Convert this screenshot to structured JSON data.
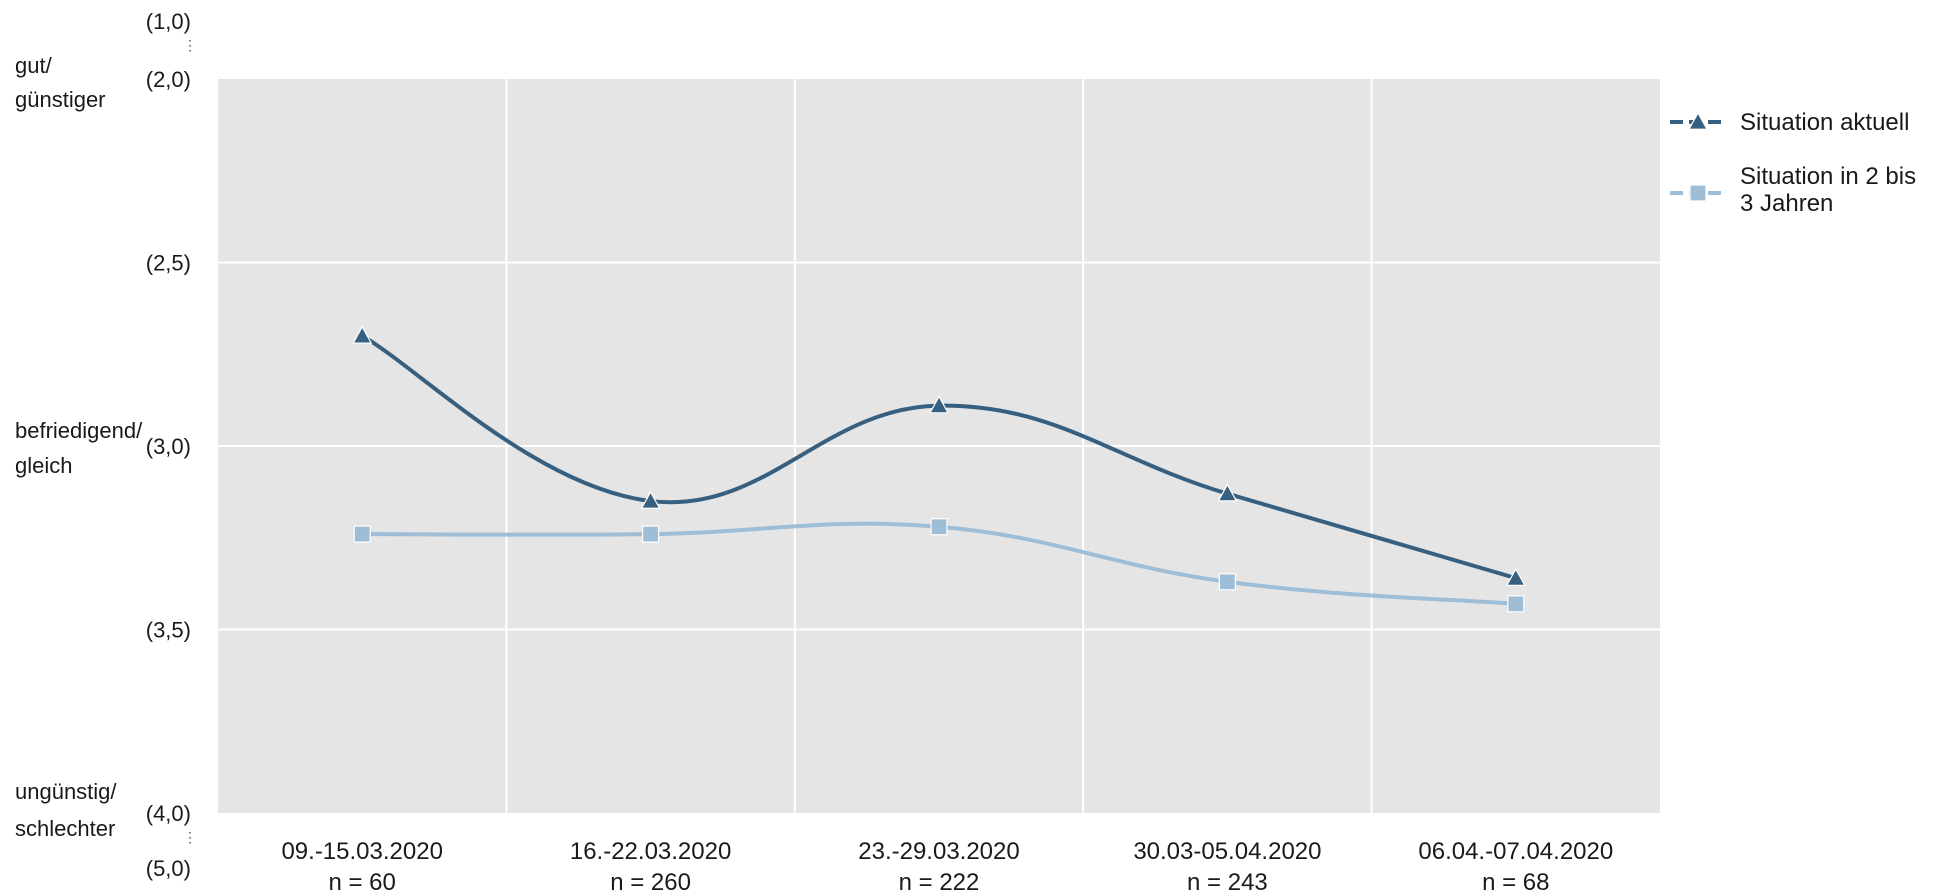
{
  "chart_data": {
    "type": "line",
    "categories": [
      "09.-15.03.2020",
      "16.-22.03.2020",
      "23.-29.03.2020",
      "30.03-05.04.2020",
      "06.04.-07.04.2020"
    ],
    "category_sublabels": [
      "n = 60",
      "n = 260",
      "n = 222",
      "n = 243",
      "n = 68"
    ],
    "series": [
      {
        "name": "Situation aktuell",
        "values": [
          2.7,
          3.15,
          2.89,
          3.13,
          3.36
        ],
        "color": "#365f80",
        "marker": "triangle"
      },
      {
        "name": "Situation in 2 bis 3 Jahren",
        "values": [
          3.24,
          3.24,
          3.22,
          3.37,
          3.43
        ],
        "color": "#9ebdd6",
        "marker": "square"
      }
    ],
    "y_scale": {
      "ylim": [
        2.0,
        4.0
      ],
      "reversed": true,
      "broken_axis": true,
      "extreme_top_label": "(1,0)",
      "extreme_bottom_label": "(5,0)"
    },
    "y_ticks": [
      {
        "value": 2.0,
        "label": "(2,0)"
      },
      {
        "value": 2.5,
        "label": "(2,5)"
      },
      {
        "value": 3.0,
        "label": "(3,0)"
      },
      {
        "value": 3.5,
        "label": "(3,5)"
      },
      {
        "value": 4.0,
        "label": "(4,0)"
      }
    ],
    "side_labels": [
      {
        "value": 2.0,
        "lines": [
          "gut/",
          "günstiger"
        ]
      },
      {
        "value": 3.0,
        "lines": [
          "befriedigend/",
          "gleich"
        ]
      },
      {
        "value": 4.0,
        "lines": [
          "ungünstig/",
          "schlechter"
        ]
      }
    ],
    "legend": {
      "position": "top-right",
      "entries": [
        {
          "lines": [
            "Situation aktuell"
          ]
        },
        {
          "lines": [
            "Situation in 2 bis",
            "3 Jahren"
          ]
        }
      ]
    },
    "grid": true,
    "colors": {
      "plot_bg": "#e5e5e5",
      "grid": "#ffffff"
    }
  }
}
